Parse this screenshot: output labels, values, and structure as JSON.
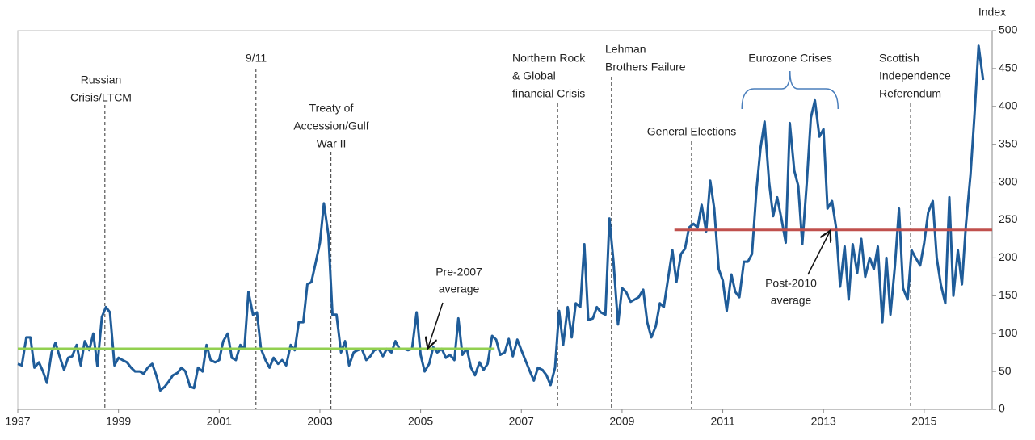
{
  "chart_data": {
    "type": "line",
    "y_label": "Index",
    "x": [
      1997,
      1997.08,
      1997.17,
      1997.25,
      1997.33,
      1997.42,
      1997.5,
      1997.58,
      1997.67,
      1997.75,
      1997.83,
      1997.92,
      1998,
      1998.08,
      1998.17,
      1998.25,
      1998.33,
      1998.42,
      1998.5,
      1998.58,
      1998.67,
      1998.75,
      1998.83,
      1998.92,
      1999,
      1999.08,
      1999.17,
      1999.25,
      1999.33,
      1999.42,
      1999.5,
      1999.58,
      1999.67,
      1999.75,
      1999.83,
      1999.92,
      2000,
      2000.08,
      2000.17,
      2000.25,
      2000.33,
      2000.42,
      2000.5,
      2000.58,
      2000.67,
      2000.75,
      2000.83,
      2000.92,
      2001,
      2001.08,
      2001.17,
      2001.25,
      2001.33,
      2001.42,
      2001.5,
      2001.58,
      2001.67,
      2001.75,
      2001.83,
      2001.92,
      2002,
      2002.08,
      2002.17,
      2002.25,
      2002.33,
      2002.42,
      2002.5,
      2002.58,
      2002.67,
      2002.75,
      2002.83,
      2002.92,
      2003,
      2003.08,
      2003.17,
      2003.25,
      2003.33,
      2003.42,
      2003.5,
      2003.58,
      2003.67,
      2003.75,
      2003.83,
      2003.92,
      2004,
      2004.08,
      2004.17,
      2004.25,
      2004.33,
      2004.42,
      2004.5,
      2004.58,
      2004.67,
      2004.75,
      2004.83,
      2004.92,
      2005,
      2005.08,
      2005.17,
      2005.25,
      2005.33,
      2005.42,
      2005.5,
      2005.58,
      2005.67,
      2005.75,
      2005.83,
      2005.92,
      2006,
      2006.08,
      2006.17,
      2006.25,
      2006.33,
      2006.42,
      2006.5,
      2006.58,
      2006.67,
      2006.75,
      2006.83,
      2006.92,
      2007,
      2007.08,
      2007.17,
      2007.25,
      2007.33,
      2007.42,
      2007.5,
      2007.58,
      2007.67,
      2007.75,
      2007.83,
      2007.92,
      2008,
      2008.08,
      2008.17,
      2008.25,
      2008.33,
      2008.42,
      2008.5,
      2008.58,
      2008.67,
      2008.75,
      2008.83,
      2008.92,
      2009,
      2009.08,
      2009.17,
      2009.25,
      2009.33,
      2009.42,
      2009.5,
      2009.58,
      2009.67,
      2009.75,
      2009.83,
      2009.92,
      2010,
      2010.08,
      2010.17,
      2010.25,
      2010.33,
      2010.42,
      2010.5,
      2010.58,
      2010.67,
      2010.75,
      2010.83,
      2010.92,
      2011,
      2011.08,
      2011.17,
      2011.25,
      2011.33,
      2011.42,
      2011.5,
      2011.58,
      2011.67,
      2011.75,
      2011.83,
      2011.92,
      2012,
      2012.08,
      2012.17,
      2012.25,
      2012.33,
      2012.42,
      2012.5,
      2012.58,
      2012.67,
      2012.75,
      2012.83,
      2012.92,
      2013,
      2013.08,
      2013.17,
      2013.25,
      2013.33,
      2013.42,
      2013.5,
      2013.58,
      2013.67,
      2013.75,
      2013.83,
      2013.92,
      2014,
      2014.08,
      2014.17,
      2014.25,
      2014.33,
      2014.42,
      2014.5,
      2014.58,
      2014.67,
      2014.75,
      2014.83,
      2014.92,
      2015,
      2015.08,
      2015.17,
      2015.25,
      2015.33,
      2015.42,
      2015.5,
      2015.58,
      2015.67,
      2015.75,
      2015.83,
      2015.92,
      2016,
      2016.08,
      2016.17
    ],
    "series": [
      {
        "color": "#1f5c99",
        "values": [
          60,
          58,
          95,
          95,
          55,
          62,
          50,
          35,
          75,
          88,
          70,
          52,
          68,
          70,
          85,
          58,
          90,
          78,
          100,
          57,
          122,
          135,
          128,
          58,
          68,
          65,
          62,
          55,
          50,
          50,
          47,
          55,
          60,
          45,
          25,
          30,
          37,
          45,
          48,
          55,
          50,
          30,
          28,
          55,
          50,
          85,
          65,
          62,
          65,
          90,
          100,
          68,
          65,
          85,
          80,
          155,
          125,
          128,
          80,
          65,
          55,
          68,
          60,
          65,
          58,
          85,
          78,
          115,
          115,
          165,
          168,
          195,
          220,
          272,
          230,
          125,
          125,
          75,
          90,
          58,
          75,
          78,
          80,
          65,
          70,
          78,
          80,
          70,
          80,
          75,
          90,
          80,
          80,
          78,
          80,
          128,
          72,
          50,
          60,
          82,
          75,
          80,
          68,
          72,
          65,
          120,
          72,
          80,
          55,
          45,
          62,
          52,
          60,
          97,
          92,
          72,
          75,
          93,
          70,
          92,
          78,
          65,
          50,
          38,
          55,
          52,
          45,
          32,
          55,
          130,
          85,
          135,
          95,
          140,
          135,
          218,
          118,
          120,
          135,
          128,
          125,
          252,
          195,
          112,
          160,
          155,
          142,
          145,
          148,
          158,
          115,
          95,
          110,
          140,
          135,
          175,
          210,
          168,
          205,
          212,
          240,
          245,
          240,
          270,
          235,
          302,
          265,
          185,
          170,
          130,
          178,
          155,
          148,
          195,
          195,
          205,
          290,
          345,
          380,
          300,
          255,
          280,
          250,
          220,
          378,
          315,
          295,
          218,
          300,
          385,
          408,
          360,
          370,
          265,
          275,
          240,
          162,
          215,
          145,
          218,
          180,
          225,
          175,
          200,
          185,
          215,
          115,
          200,
          125,
          190,
          265,
          160,
          145,
          210,
          200,
          190,
          220,
          260,
          275,
          200,
          165,
          140,
          280,
          150,
          210,
          165,
          245,
          310,
          390,
          480,
          435
        ]
      }
    ],
    "xlim": [
      1997,
      2016.35
    ],
    "xticks": [
      1997,
      1999,
      2001,
      2003,
      2005,
      2007,
      2009,
      2011,
      2013,
      2015
    ],
    "ylim": [
      0,
      500
    ],
    "yticks": [
      0,
      50,
      100,
      150,
      200,
      250,
      300,
      350,
      400,
      450,
      500
    ],
    "reference_lines": [
      {
        "lines": [
          "Pre-2007",
          "average"
        ],
        "value": 80,
        "x_range": [
          1997,
          2006.47
        ],
        "color": "#92d050"
      },
      {
        "lines": [
          "Post-2010",
          "average"
        ],
        "value": 237,
        "x_range": [
          2010.04,
          2016.35
        ],
        "color": "#c0504d"
      }
    ],
    "annotations": [
      {
        "lines": [
          "Russian",
          "Crisis/LTCM"
        ],
        "x": 1998.73
      },
      {
        "lines": [
          "9/11"
        ],
        "x": 2001.73
      },
      {
        "lines": [
          "Treaty of",
          "Accession/Gulf",
          "War II"
        ],
        "x": 2003.22
      },
      {
        "lines": [
          "Northern Rock",
          "& Global",
          "financial Crisis"
        ],
        "x": 2007.72
      },
      {
        "lines": [
          "Lehman",
          "Brothers Failure"
        ],
        "x": 2008.79
      },
      {
        "lines": [
          "General Elections"
        ],
        "x": 2010.38
      },
      {
        "lines": [
          "Scottish",
          "Independence",
          "Referendum"
        ],
        "x": 2014.73
      },
      {
        "lines": [
          "Eurozone Crises"
        ],
        "x_range": [
          2011.38,
          2013.29
        ]
      }
    ]
  }
}
